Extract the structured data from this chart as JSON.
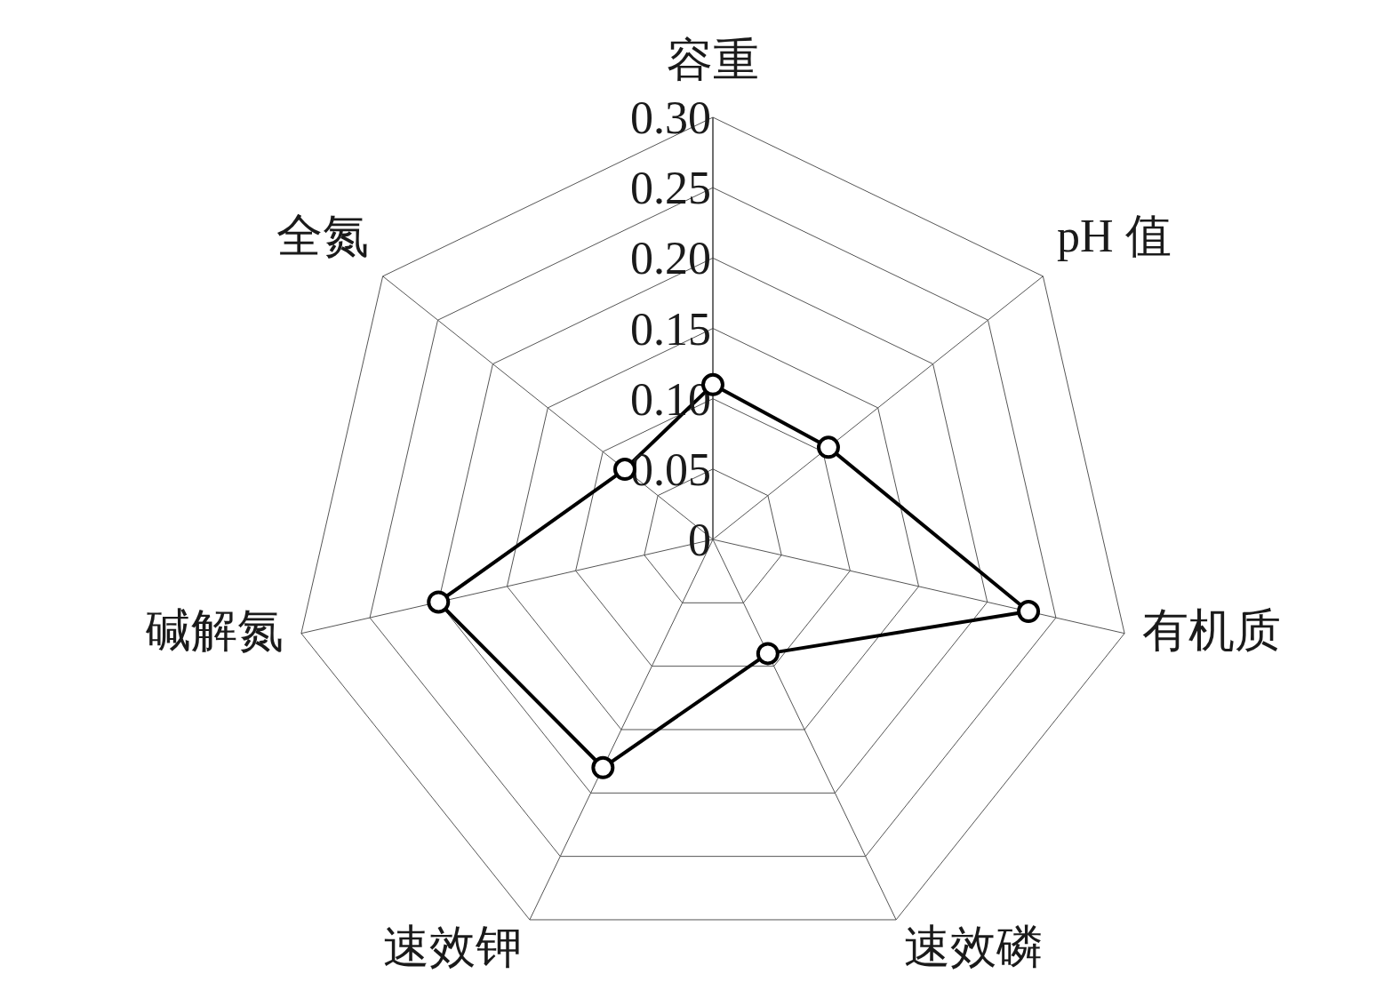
{
  "chart_data": {
    "type": "radar",
    "categories": [
      "容重",
      "pH 值",
      "有机质",
      "速效磷",
      "速效钾",
      "碱解氮",
      "全氮"
    ],
    "series": [
      {
        "color": "#000000",
        "values": [
          0.11,
          0.105,
          0.23,
          0.09,
          0.18,
          0.2,
          0.08
        ]
      }
    ],
    "ylim": [
      0,
      0.3
    ],
    "yticks": [
      0,
      0.05,
      {
        "value": 0.1,
        "label": "0.10"
      },
      0.15,
      {
        "value": 0.2,
        "label": "0.20"
      },
      0.25,
      {
        "value": 0.3,
        "label": "0.30"
      }
    ],
    "grid": true,
    "marker": "circle",
    "line_style": "solid"
  }
}
